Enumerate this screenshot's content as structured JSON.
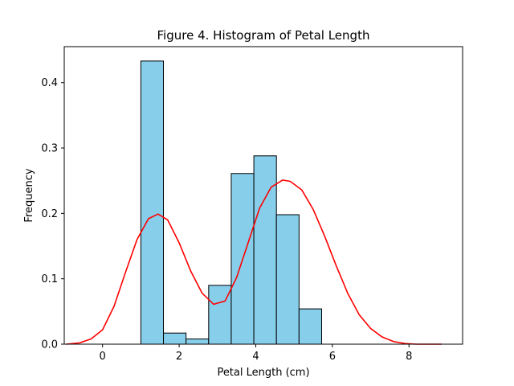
{
  "chart_data": {
    "type": "bar",
    "title": "Figure 4. Histogram of Petal Length",
    "xlabel": "Petal Length (cm)",
    "ylabel": "Frequency",
    "xlim": [
      -1.0,
      9.4
    ],
    "ylim": [
      0,
      0.455
    ],
    "xticks": [
      0,
      2,
      4,
      6,
      8
    ],
    "yticks": [
      0.0,
      0.1,
      0.2,
      0.3,
      0.4
    ],
    "bar_color": "#87ceeb",
    "bar_edge_color": "#000000",
    "kde_color": "#ff0000",
    "bins": [
      {
        "x0": 1.0,
        "x1": 1.59,
        "value": 0.433
      },
      {
        "x0": 1.59,
        "x1": 2.18,
        "value": 0.017
      },
      {
        "x0": 2.18,
        "x1": 2.77,
        "value": 0.008
      },
      {
        "x0": 2.77,
        "x1": 3.36,
        "value": 0.09
      },
      {
        "x0": 3.36,
        "x1": 3.95,
        "value": 0.261
      },
      {
        "x0": 3.95,
        "x1": 4.54,
        "value": 0.288
      },
      {
        "x0": 4.54,
        "x1": 5.13,
        "value": 0.198
      },
      {
        "x0": 5.13,
        "x1": 5.72,
        "value": 0.054
      }
    ],
    "kde_curve": {
      "x": [
        -0.95,
        -0.6,
        -0.3,
        0.0,
        0.3,
        0.6,
        0.9,
        1.2,
        1.45,
        1.7,
        2.0,
        2.3,
        2.6,
        2.9,
        3.2,
        3.5,
        3.8,
        4.1,
        4.4,
        4.7,
        4.9,
        5.2,
        5.5,
        5.8,
        6.1,
        6.4,
        6.7,
        7.0,
        7.3,
        7.6,
        7.9,
        8.2,
        8.5,
        8.85
      ],
      "y": [
        0.0,
        0.002,
        0.008,
        0.022,
        0.058,
        0.11,
        0.16,
        0.192,
        0.199,
        0.19,
        0.155,
        0.112,
        0.078,
        0.061,
        0.066,
        0.102,
        0.155,
        0.208,
        0.24,
        0.251,
        0.249,
        0.236,
        0.206,
        0.165,
        0.12,
        0.078,
        0.045,
        0.024,
        0.011,
        0.004,
        0.001,
        0.0,
        0.0,
        0.0
      ]
    }
  }
}
